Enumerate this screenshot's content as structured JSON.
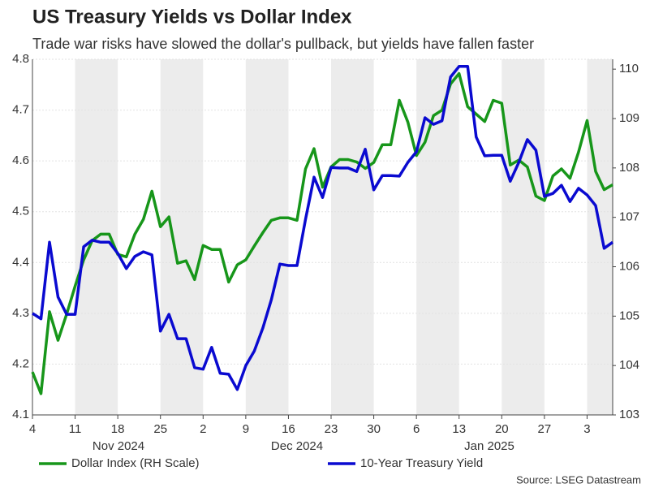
{
  "chart_data": {
    "type": "line",
    "title": "US Treasury Yields vs Dollar Index",
    "subtitle": "Trade war risks have slowed the dollar's pullback, but yields have fallen faster",
    "source": "Source: LSEG Datastream",
    "month_labels": [
      "Nov 2024",
      "Dec 2024",
      "Jan 2025"
    ],
    "x": [
      "2024-11-04",
      "2024-11-05",
      "2024-11-06",
      "2024-11-07",
      "2024-11-08",
      "2024-11-11",
      "2024-11-12",
      "2024-11-13",
      "2024-11-14",
      "2024-11-15",
      "2024-11-18",
      "2024-11-19",
      "2024-11-20",
      "2024-11-21",
      "2024-11-22",
      "2024-11-25",
      "2024-11-26",
      "2024-11-27",
      "2024-11-28",
      "2024-11-29",
      "2024-12-02",
      "2024-12-03",
      "2024-12-04",
      "2024-12-05",
      "2024-12-06",
      "2024-12-09",
      "2024-12-10",
      "2024-12-11",
      "2024-12-12",
      "2024-12-13",
      "2024-12-16",
      "2024-12-17",
      "2024-12-18",
      "2024-12-19",
      "2024-12-20",
      "2024-12-23",
      "2024-12-24",
      "2024-12-25",
      "2024-12-26",
      "2024-12-27",
      "2024-12-30",
      "2024-12-31",
      "2025-01-01",
      "2025-01-02",
      "2025-01-03",
      "2025-01-06",
      "2025-01-07",
      "2025-01-08",
      "2025-01-09",
      "2025-01-10",
      "2025-01-13",
      "2025-01-14",
      "2025-01-15",
      "2025-01-16",
      "2025-01-17",
      "2025-01-20",
      "2025-01-21",
      "2025-01-22",
      "2025-01-23",
      "2025-01-24",
      "2025-01-27",
      "2025-01-28",
      "2025-01-29",
      "2025-01-30",
      "2025-01-31",
      "2025-02-03",
      "2025-02-04",
      "2025-02-05",
      "2025-02-06"
    ],
    "xticks": [
      {
        "value": "2024-11-04",
        "label": "4"
      },
      {
        "value": "2024-11-11",
        "label": "11"
      },
      {
        "value": "2024-11-18",
        "label": "18"
      },
      {
        "value": "2024-11-25",
        "label": "25"
      },
      {
        "value": "2024-12-02",
        "label": "2"
      },
      {
        "value": "2024-12-09",
        "label": "9"
      },
      {
        "value": "2024-12-16",
        "label": "16"
      },
      {
        "value": "2024-12-23",
        "label": "23"
      },
      {
        "value": "2024-12-30",
        "label": "30"
      },
      {
        "value": "2025-01-06",
        "label": "6"
      },
      {
        "value": "2025-01-13",
        "label": "13"
      },
      {
        "value": "2025-01-20",
        "label": "20"
      },
      {
        "value": "2025-01-27",
        "label": "27"
      },
      {
        "value": "2025-02-03",
        "label": "3"
      }
    ],
    "ylim": [
      4.1,
      4.8
    ],
    "yticks": [
      4.1,
      4.2,
      4.3,
      4.4,
      4.5,
      4.6,
      4.7,
      4.8
    ],
    "y2lim": [
      103,
      110.2
    ],
    "y2ticks": [
      103,
      104,
      105,
      106,
      107,
      108,
      109,
      110
    ],
    "grid": true,
    "legend": "bottom",
    "series": [
      {
        "name": "Dollar Index (RH Scale)",
        "color": "#17961a",
        "axis": "y2",
        "values": [
          103.87,
          103.43,
          105.09,
          104.51,
          105.04,
          105.61,
          106.14,
          106.53,
          106.66,
          106.66,
          106.25,
          106.2,
          106.66,
          106.96,
          107.53,
          106.81,
          107.01,
          106.07,
          106.12,
          105.74,
          106.43,
          106.35,
          106.35,
          105.69,
          106.04,
          106.14,
          106.42,
          106.69,
          106.94,
          106.99,
          106.99,
          106.94,
          107.98,
          108.39,
          107.61,
          108.02,
          108.17,
          108.17,
          108.12,
          107.99,
          108.11,
          108.47,
          108.47,
          109.37,
          108.93,
          108.25,
          108.52,
          109.06,
          109.17,
          109.7,
          109.91,
          109.24,
          109.09,
          108.94,
          109.37,
          109.31,
          108.06,
          108.16,
          108.02,
          107.43,
          107.34,
          107.84,
          107.98,
          107.79,
          108.32,
          108.96,
          107.93,
          107.56,
          107.66
        ]
      },
      {
        "name": "10-Year Treasury Yield",
        "color": "#0a0ad0",
        "values": [
          4.3,
          4.289,
          4.44,
          4.332,
          4.298,
          4.298,
          4.431,
          4.444,
          4.44,
          4.44,
          4.418,
          4.388,
          4.412,
          4.421,
          4.415,
          4.265,
          4.298,
          4.25,
          4.25,
          4.193,
          4.19,
          4.233,
          4.182,
          4.18,
          4.15,
          4.197,
          4.226,
          4.271,
          4.327,
          4.397,
          4.394,
          4.394,
          4.485,
          4.568,
          4.528,
          4.587,
          4.586,
          4.586,
          4.579,
          4.623,
          4.543,
          4.571,
          4.571,
          4.57,
          4.597,
          4.618,
          4.685,
          4.672,
          4.679,
          4.765,
          4.786,
          4.786,
          4.647,
          4.61,
          4.611,
          4.611,
          4.56,
          4.597,
          4.642,
          4.621,
          4.53,
          4.536,
          4.552,
          4.52,
          4.546,
          4.533,
          4.512,
          4.428,
          4.44
        ]
      }
    ]
  }
}
